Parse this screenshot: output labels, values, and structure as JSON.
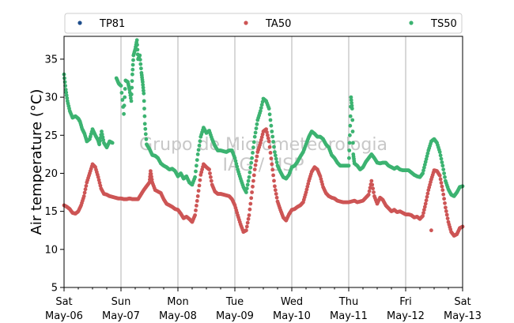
{
  "chart_data": {
    "type": "scatter",
    "title": "",
    "xlabel": "",
    "ylabel": "Air temperature (°C)",
    "ylim": [
      5,
      38
    ],
    "yticks": [
      5,
      10,
      15,
      20,
      25,
      30,
      35
    ],
    "xlim": [
      0,
      7
    ],
    "grid": "vertical",
    "legend_position": "top",
    "watermark": [
      "Grupo de Micrometeorologia",
      "IAG / USP"
    ],
    "xticks": [
      {
        "x": 0,
        "day": "Sat",
        "date": "May-06"
      },
      {
        "x": 1,
        "day": "Sun",
        "date": "May-07"
      },
      {
        "x": 2,
        "day": "Mon",
        "date": "May-08"
      },
      {
        "x": 3,
        "day": "Tue",
        "date": "May-09"
      },
      {
        "x": 4,
        "day": "Wed",
        "date": "May-10"
      },
      {
        "x": 5,
        "day": "Thu",
        "date": "May-11"
      },
      {
        "x": 6,
        "day": "Fri",
        "date": "May-12"
      },
      {
        "x": 7,
        "day": "Sat",
        "date": "May-13"
      }
    ],
    "series": [
      {
        "name": "TP81",
        "color": "#1f4e8c",
        "points": []
      },
      {
        "name": "TA50",
        "color": "#cd5555",
        "points": [
          [
            0.0,
            15.8
          ],
          [
            0.05,
            15.6
          ],
          [
            0.1,
            15.3
          ],
          [
            0.15,
            14.8
          ],
          [
            0.2,
            14.7
          ],
          [
            0.25,
            15.0
          ],
          [
            0.3,
            15.8
          ],
          [
            0.35,
            17.0
          ],
          [
            0.4,
            18.8
          ],
          [
            0.45,
            20.0
          ],
          [
            0.5,
            21.2
          ],
          [
            0.55,
            20.8
          ],
          [
            0.6,
            19.5
          ],
          [
            0.65,
            18.0
          ],
          [
            0.7,
            17.3
          ],
          [
            0.75,
            17.2
          ],
          [
            0.8,
            17.0
          ],
          [
            0.85,
            16.9
          ],
          [
            0.9,
            16.8
          ],
          [
            0.95,
            16.7
          ],
          [
            1.0,
            16.7
          ],
          [
            1.05,
            16.6
          ],
          [
            1.1,
            16.6
          ],
          [
            1.15,
            16.7
          ],
          [
            1.2,
            16.6
          ],
          [
            1.25,
            16.6
          ],
          [
            1.3,
            16.6
          ],
          [
            1.35,
            17.2
          ],
          [
            1.4,
            17.8
          ],
          [
            1.45,
            18.3
          ],
          [
            1.5,
            18.8
          ],
          [
            1.52,
            20.3
          ],
          [
            1.55,
            18.8
          ],
          [
            1.6,
            17.8
          ],
          [
            1.65,
            17.6
          ],
          [
            1.7,
            17.4
          ],
          [
            1.75,
            16.6
          ],
          [
            1.8,
            16.0
          ],
          [
            1.85,
            15.8
          ],
          [
            1.9,
            15.6
          ],
          [
            1.95,
            15.3
          ],
          [
            2.0,
            15.2
          ],
          [
            2.05,
            14.7
          ],
          [
            2.1,
            14.1
          ],
          [
            2.15,
            14.3
          ],
          [
            2.2,
            14.0
          ],
          [
            2.25,
            13.6
          ],
          [
            2.3,
            14.5
          ],
          [
            2.35,
            17.0
          ],
          [
            2.4,
            19.8
          ],
          [
            2.45,
            21.2
          ],
          [
            2.5,
            20.8
          ],
          [
            2.55,
            20.5
          ],
          [
            2.6,
            18.5
          ],
          [
            2.65,
            17.6
          ],
          [
            2.7,
            17.3
          ],
          [
            2.75,
            17.3
          ],
          [
            2.8,
            17.2
          ],
          [
            2.85,
            17.1
          ],
          [
            2.9,
            17.0
          ],
          [
            2.95,
            16.6
          ],
          [
            3.0,
            15.8
          ],
          [
            3.05,
            14.5
          ],
          [
            3.1,
            13.3
          ],
          [
            3.15,
            12.3
          ],
          [
            3.2,
            12.5
          ],
          [
            3.25,
            14.5
          ],
          [
            3.3,
            17.5
          ],
          [
            3.35,
            20.5
          ],
          [
            3.4,
            22.8
          ],
          [
            3.45,
            24.0
          ],
          [
            3.5,
            25.5
          ],
          [
            3.55,
            25.8
          ],
          [
            3.6,
            24.2
          ],
          [
            3.65,
            21.2
          ],
          [
            3.7,
            18.3
          ],
          [
            3.75,
            16.3
          ],
          [
            3.8,
            15.2
          ],
          [
            3.85,
            14.2
          ],
          [
            3.9,
            13.8
          ],
          [
            3.95,
            14.6
          ],
          [
            4.0,
            15.2
          ],
          [
            4.05,
            15.3
          ],
          [
            4.1,
            15.6
          ],
          [
            4.15,
            15.8
          ],
          [
            4.2,
            16.2
          ],
          [
            4.25,
            17.5
          ],
          [
            4.3,
            19.0
          ],
          [
            4.35,
            20.2
          ],
          [
            4.4,
            20.8
          ],
          [
            4.45,
            20.5
          ],
          [
            4.5,
            19.6
          ],
          [
            4.55,
            18.2
          ],
          [
            4.6,
            17.4
          ],
          [
            4.65,
            17.0
          ],
          [
            4.7,
            16.8
          ],
          [
            4.75,
            16.7
          ],
          [
            4.8,
            16.4
          ],
          [
            4.85,
            16.3
          ],
          [
            4.9,
            16.2
          ],
          [
            4.95,
            16.2
          ],
          [
            5.0,
            16.2
          ],
          [
            5.05,
            16.3
          ],
          [
            5.1,
            16.4
          ],
          [
            5.15,
            16.2
          ],
          [
            5.2,
            16.3
          ],
          [
            5.25,
            16.4
          ],
          [
            5.3,
            16.8
          ],
          [
            5.35,
            17.2
          ],
          [
            5.4,
            19.0
          ],
          [
            5.45,
            17.0
          ],
          [
            5.5,
            16.0
          ],
          [
            5.55,
            16.8
          ],
          [
            5.6,
            16.5
          ],
          [
            5.65,
            15.8
          ],
          [
            5.7,
            15.4
          ],
          [
            5.75,
            15.0
          ],
          [
            5.8,
            15.2
          ],
          [
            5.85,
            14.9
          ],
          [
            5.9,
            15.0
          ],
          [
            5.95,
            14.8
          ],
          [
            6.0,
            14.6
          ],
          [
            6.05,
            14.6
          ],
          [
            6.1,
            14.5
          ],
          [
            6.15,
            14.2
          ],
          [
            6.2,
            14.3
          ],
          [
            6.25,
            14.0
          ],
          [
            6.3,
            14.4
          ],
          [
            6.35,
            16.0
          ],
          [
            6.4,
            17.8
          ],
          [
            6.45,
            19.2
          ],
          [
            6.5,
            20.4
          ],
          [
            6.55,
            20.3
          ],
          [
            6.6,
            19.7
          ],
          [
            6.65,
            17.8
          ],
          [
            6.7,
            15.5
          ],
          [
            6.75,
            13.6
          ],
          [
            6.8,
            12.3
          ],
          [
            6.85,
            11.8
          ],
          [
            6.9,
            12.0
          ],
          [
            6.95,
            12.8
          ],
          [
            7.0,
            13.0
          ],
          [
            6.45,
            12.5
          ]
        ]
      },
      {
        "name": "TS50",
        "color": "#3cb371",
        "points": [
          [
            0.0,
            33.0
          ],
          [
            0.03,
            31.0
          ],
          [
            0.06,
            29.5
          ],
          [
            0.1,
            28.2
          ],
          [
            0.15,
            27.3
          ],
          [
            0.2,
            27.5
          ],
          [
            0.25,
            27.2
          ],
          [
            0.28,
            26.8
          ],
          [
            0.32,
            25.8
          ],
          [
            0.36,
            25.2
          ],
          [
            0.4,
            24.2
          ],
          [
            0.45,
            24.5
          ],
          [
            0.5,
            25.8
          ],
          [
            0.55,
            25.0
          ],
          [
            0.6,
            24.3
          ],
          [
            0.62,
            23.8
          ],
          [
            0.66,
            25.5
          ],
          [
            0.7,
            24.0
          ],
          [
            0.75,
            23.4
          ],
          [
            0.8,
            24.2
          ],
          [
            0.85,
            24.0
          ],
          [
            0.92,
            32.5
          ],
          [
            0.96,
            31.8
          ],
          [
            1.0,
            31.5
          ],
          [
            1.05,
            27.8
          ],
          [
            1.08,
            32.2
          ],
          [
            1.12,
            32.0
          ],
          [
            1.15,
            31.0
          ],
          [
            1.18,
            29.5
          ],
          [
            1.2,
            33.0
          ],
          [
            1.22,
            35.5
          ],
          [
            1.25,
            36.3
          ],
          [
            1.28,
            37.5
          ],
          [
            1.3,
            35.0
          ],
          [
            1.33,
            35.5
          ],
          [
            1.36,
            33.2
          ],
          [
            1.38,
            32.0
          ],
          [
            1.4,
            30.5
          ],
          [
            1.42,
            26.5
          ],
          [
            1.45,
            23.8
          ],
          [
            1.5,
            23.2
          ],
          [
            1.55,
            22.4
          ],
          [
            1.6,
            22.3
          ],
          [
            1.65,
            22.0
          ],
          [
            1.7,
            21.3
          ],
          [
            1.75,
            21.0
          ],
          [
            1.8,
            20.8
          ],
          [
            1.85,
            20.5
          ],
          [
            1.9,
            20.6
          ],
          [
            1.95,
            20.3
          ],
          [
            2.0,
            19.6
          ],
          [
            2.05,
            20.0
          ],
          [
            2.1,
            19.3
          ],
          [
            2.15,
            19.6
          ],
          [
            2.2,
            18.8
          ],
          [
            2.25,
            18.5
          ],
          [
            2.3,
            19.5
          ],
          [
            2.35,
            22.5
          ],
          [
            2.4,
            24.8
          ],
          [
            2.45,
            26.0
          ],
          [
            2.5,
            25.3
          ],
          [
            2.55,
            25.6
          ],
          [
            2.6,
            24.5
          ],
          [
            2.65,
            23.6
          ],
          [
            2.7,
            23.0
          ],
          [
            2.75,
            23.0
          ],
          [
            2.8,
            22.9
          ],
          [
            2.85,
            22.8
          ],
          [
            2.9,
            23.0
          ],
          [
            2.95,
            23.0
          ],
          [
            3.0,
            22.0
          ],
          [
            3.05,
            20.5
          ],
          [
            3.1,
            19.3
          ],
          [
            3.15,
            18.2
          ],
          [
            3.2,
            17.5
          ],
          [
            3.25,
            19.5
          ],
          [
            3.3,
            22.0
          ],
          [
            3.35,
            24.8
          ],
          [
            3.4,
            27.0
          ],
          [
            3.45,
            28.2
          ],
          [
            3.5,
            29.8
          ],
          [
            3.55,
            29.5
          ],
          [
            3.6,
            28.5
          ],
          [
            3.65,
            25.5
          ],
          [
            3.7,
            22.8
          ],
          [
            3.75,
            21.0
          ],
          [
            3.8,
            20.2
          ],
          [
            3.85,
            19.5
          ],
          [
            3.9,
            19.3
          ],
          [
            3.95,
            19.8
          ],
          [
            4.0,
            20.8
          ],
          [
            4.05,
            21.0
          ],
          [
            4.1,
            21.5
          ],
          [
            4.15,
            22.2
          ],
          [
            4.2,
            22.8
          ],
          [
            4.25,
            23.8
          ],
          [
            4.3,
            24.8
          ],
          [
            4.35,
            25.5
          ],
          [
            4.4,
            25.2
          ],
          [
            4.45,
            24.8
          ],
          [
            4.5,
            24.8
          ],
          [
            4.55,
            24.5
          ],
          [
            4.6,
            23.8
          ],
          [
            4.65,
            23.4
          ],
          [
            4.7,
            22.4
          ],
          [
            4.75,
            22.0
          ],
          [
            4.8,
            21.4
          ],
          [
            4.85,
            21.0
          ],
          [
            4.9,
            21.0
          ],
          [
            4.95,
            21.0
          ],
          [
            5.0,
            21.0
          ],
          [
            5.02,
            25.0
          ],
          [
            5.04,
            30.0
          ],
          [
            5.06,
            28.5
          ],
          [
            5.08,
            22.5
          ],
          [
            5.1,
            21.3
          ],
          [
            5.15,
            21.0
          ],
          [
            5.2,
            20.5
          ],
          [
            5.25,
            20.8
          ],
          [
            5.3,
            21.5
          ],
          [
            5.35,
            22.0
          ],
          [
            5.4,
            22.5
          ],
          [
            5.45,
            22.0
          ],
          [
            5.5,
            21.4
          ],
          [
            5.55,
            21.3
          ],
          [
            5.6,
            21.4
          ],
          [
            5.65,
            21.4
          ],
          [
            5.7,
            21.0
          ],
          [
            5.75,
            20.8
          ],
          [
            5.8,
            20.6
          ],
          [
            5.85,
            20.8
          ],
          [
            5.9,
            20.5
          ],
          [
            5.95,
            20.4
          ],
          [
            6.0,
            20.4
          ],
          [
            6.05,
            20.4
          ],
          [
            6.1,
            20.1
          ],
          [
            6.15,
            19.8
          ],
          [
            6.2,
            19.6
          ],
          [
            6.25,
            19.5
          ],
          [
            6.3,
            20.0
          ],
          [
            6.35,
            21.5
          ],
          [
            6.4,
            23.0
          ],
          [
            6.45,
            24.2
          ],
          [
            6.5,
            24.5
          ],
          [
            6.55,
            24.0
          ],
          [
            6.6,
            22.8
          ],
          [
            6.65,
            21.0
          ],
          [
            6.7,
            19.0
          ],
          [
            6.75,
            17.9
          ],
          [
            6.8,
            17.2
          ],
          [
            6.85,
            17.0
          ],
          [
            6.9,
            17.5
          ],
          [
            6.95,
            18.2
          ],
          [
            7.0,
            18.3
          ]
        ]
      }
    ]
  }
}
